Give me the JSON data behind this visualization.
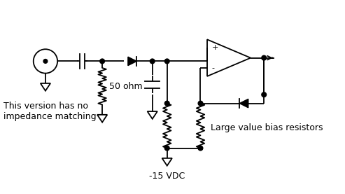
{
  "bg_color": "#ffffff",
  "line_color": "#000000",
  "dot_color": "#000000",
  "labels": {
    "fifty_ohm": "50 ohm",
    "bias_resistors": "Large value bias resistors",
    "no_impedance": "This version has no\nimpedance matching",
    "neg15vdc": "-15 VDC"
  }
}
